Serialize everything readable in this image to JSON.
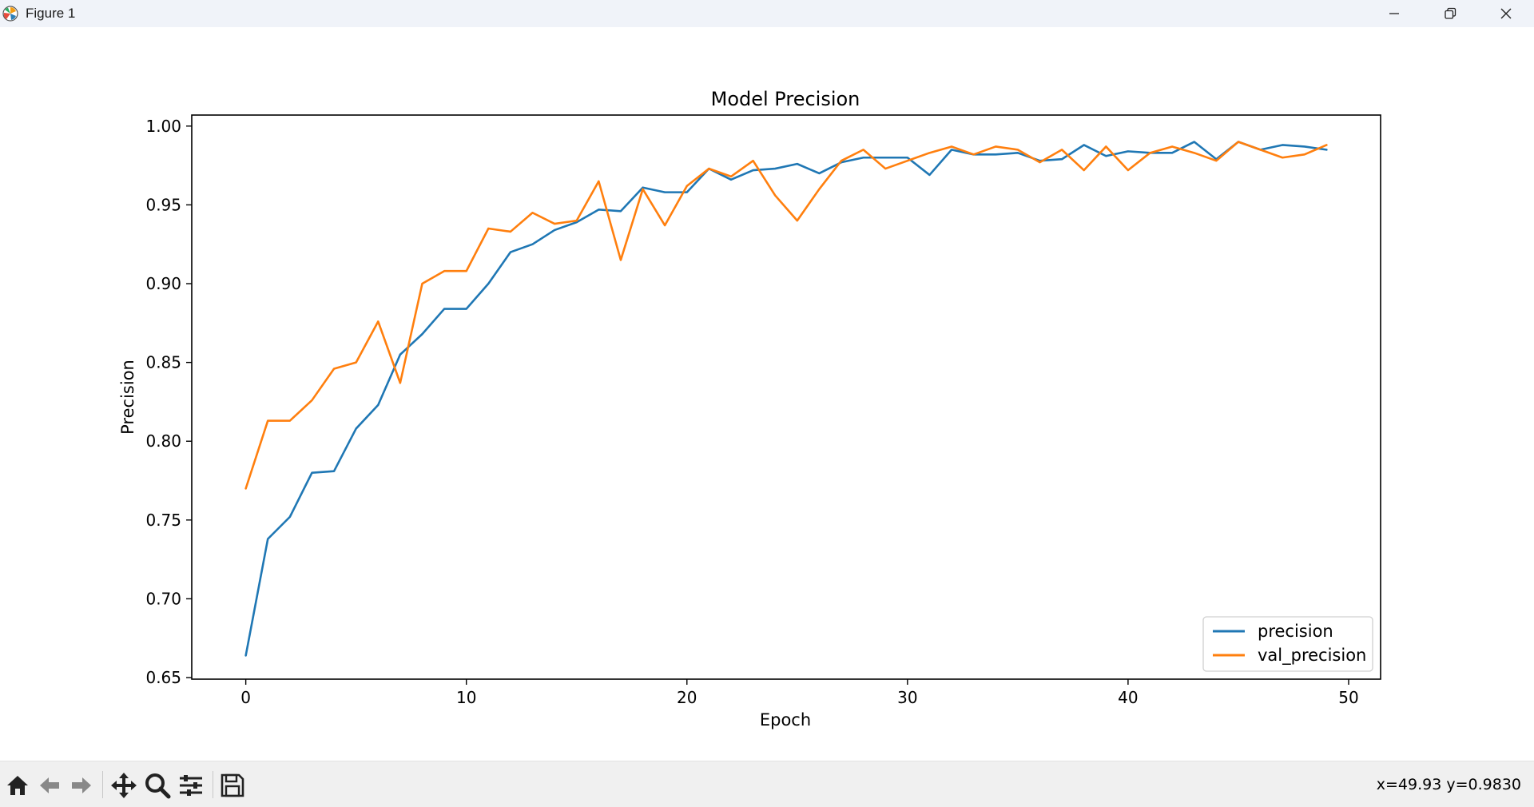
{
  "window": {
    "title": "Figure 1",
    "app_icon": "matplotlib-logo-icon",
    "controls": [
      "minimize-icon",
      "restore-icon",
      "close-icon"
    ]
  },
  "toolbar": {
    "buttons": [
      {
        "name": "home-button",
        "icon": "home-icon"
      },
      {
        "name": "back-button",
        "icon": "arrow-left-icon"
      },
      {
        "name": "forward-button",
        "icon": "arrow-right-icon"
      },
      {
        "name": "pan-button",
        "icon": "move-icon"
      },
      {
        "name": "zoom-button",
        "icon": "magnifier-icon"
      },
      {
        "name": "configure-subplots-button",
        "icon": "sliders-icon"
      },
      {
        "name": "save-button",
        "icon": "floppy-disk-icon"
      }
    ],
    "coordinates": "x=49.93 y=0.9830"
  },
  "colors": {
    "precision": "#1f77b4",
    "val_precision": "#ff7f0e"
  },
  "chart_data": {
    "type": "line",
    "title": "Model Precision",
    "xlabel": "Epoch",
    "ylabel": "Precision",
    "xlim": [
      -2.45,
      51.45
    ],
    "ylim": [
      0.649,
      1.007
    ],
    "xticks": [
      0,
      10,
      20,
      30,
      40,
      50
    ],
    "yticks": [
      0.65,
      0.7,
      0.75,
      0.8,
      0.85,
      0.9,
      0.95,
      1.0
    ],
    "xtick_labels": [
      "0",
      "10",
      "20",
      "30",
      "40",
      "50"
    ],
    "ytick_labels": [
      "0.65",
      "0.70",
      "0.75",
      "0.80",
      "0.85",
      "0.90",
      "0.95",
      "1.00"
    ],
    "legend_position": "lower right",
    "grid": false,
    "x": [
      0,
      1,
      2,
      3,
      4,
      5,
      6,
      7,
      8,
      9,
      10,
      11,
      12,
      13,
      14,
      15,
      16,
      17,
      18,
      19,
      20,
      21,
      22,
      23,
      24,
      25,
      26,
      27,
      28,
      29,
      30,
      31,
      32,
      33,
      34,
      35,
      36,
      37,
      38,
      39,
      40,
      41,
      42,
      43,
      44,
      45,
      46,
      47,
      48,
      49
    ],
    "series": [
      {
        "name": "precision",
        "values": [
          0.664,
          0.738,
          0.752,
          0.78,
          0.781,
          0.808,
          0.823,
          0.855,
          0.868,
          0.884,
          0.884,
          0.9,
          0.92,
          0.925,
          0.934,
          0.939,
          0.947,
          0.946,
          0.961,
          0.958,
          0.958,
          0.973,
          0.966,
          0.972,
          0.973,
          0.976,
          0.97,
          0.977,
          0.98,
          0.98,
          0.98,
          0.969,
          0.985,
          0.982,
          0.982,
          0.983,
          0.978,
          0.979,
          0.988,
          0.981,
          0.984,
          0.983,
          0.983,
          0.99,
          0.979,
          0.99,
          0.985,
          0.988,
          0.987,
          0.985
        ]
      },
      {
        "name": "val_precision",
        "values": [
          0.77,
          0.813,
          0.813,
          0.826,
          0.846,
          0.85,
          0.876,
          0.837,
          0.9,
          0.908,
          0.908,
          0.935,
          0.933,
          0.945,
          0.938,
          0.94,
          0.965,
          0.915,
          0.96,
          0.937,
          0.962,
          0.973,
          0.968,
          0.978,
          0.956,
          0.94,
          0.96,
          0.978,
          0.985,
          0.973,
          0.978,
          0.983,
          0.987,
          0.982,
          0.987,
          0.985,
          0.977,
          0.985,
          0.972,
          0.987,
          0.972,
          0.983,
          0.987,
          0.983,
          0.978,
          0.99,
          0.985,
          0.98,
          0.982,
          0.988
        ]
      }
    ]
  }
}
